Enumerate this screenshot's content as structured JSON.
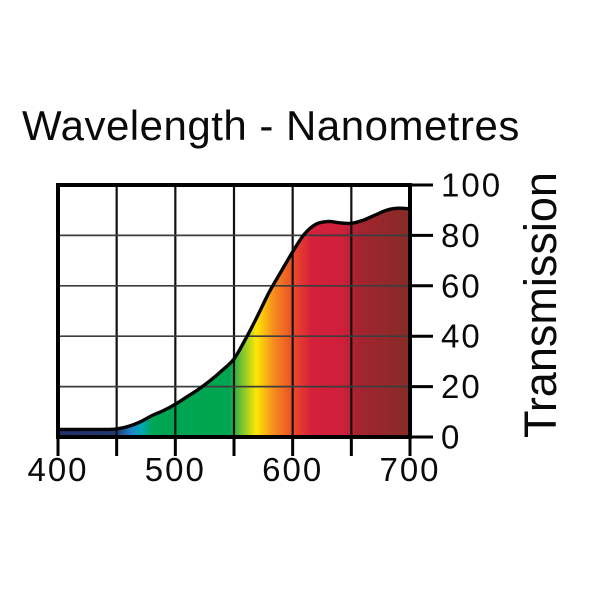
{
  "colors": {
    "background": "#ffffff",
    "text": "#0a0a0a",
    "curve_stroke": "#050505",
    "frame": "#000000",
    "grid_vertical": "#111111",
    "grid_horizontal": "#3d3d3d",
    "tick": "#000000"
  },
  "chart_data": {
    "type": "area",
    "title": "Wavelength - Nanometres",
    "ylabel": "Transmission",
    "xlabel": "",
    "xlim": [
      400,
      700
    ],
    "ylim": [
      0,
      100
    ],
    "grid": true,
    "legend": "none",
    "x": [
      400,
      410,
      420,
      430,
      440,
      450,
      460,
      470,
      480,
      490,
      500,
      510,
      520,
      530,
      540,
      550,
      560,
      570,
      580,
      590,
      600,
      610,
      620,
      630,
      640,
      650,
      660,
      670,
      680,
      690,
      700
    ],
    "values": [
      3,
      3,
      3,
      3,
      3,
      3.2,
      4.2,
      6,
      8.5,
      10.5,
      13,
      16,
      19,
      22.5,
      26.5,
      31,
      39,
      48,
      57.5,
      65.5,
      73.5,
      80.5,
      84.5,
      85.5,
      85,
      84.8,
      86,
      88,
      90,
      90.8,
      90.5
    ],
    "x_ticks": [
      400,
      450,
      500,
      550,
      600,
      650,
      700
    ],
    "x_gridlines": [
      450,
      500,
      550,
      600,
      650
    ],
    "y_gridlines": [
      20,
      40,
      60,
      80
    ],
    "x_tick_labels": [
      {
        "nm": 400,
        "text": "400"
      },
      {
        "nm": 500,
        "text": "500"
      },
      {
        "nm": 600,
        "text": "600"
      },
      {
        "nm": 700,
        "text": "700"
      }
    ],
    "y_tick_labels": [
      {
        "v": 0,
        "text": "0"
      },
      {
        "v": 20,
        "text": "20"
      },
      {
        "v": 40,
        "text": "40"
      },
      {
        "v": 60,
        "text": "60"
      },
      {
        "v": 80,
        "text": "80"
      },
      {
        "v": 100,
        "text": "100"
      }
    ],
    "fill_style": "visible-spectrum horizontal gradient",
    "gradient_stops": [
      {
        "at": 400,
        "color": "#232e6b"
      },
      {
        "at": 450,
        "color": "#20396f"
      },
      {
        "at": 462,
        "color": "#2181c8"
      },
      {
        "at": 471,
        "color": "#00a9b4"
      },
      {
        "at": 481,
        "color": "#00a551"
      },
      {
        "at": 546,
        "color": "#00a551"
      },
      {
        "at": 569,
        "color": "#ffe606"
      },
      {
        "at": 584,
        "color": "#f68b1e"
      },
      {
        "at": 603,
        "color": "#e8432c"
      },
      {
        "at": 616,
        "color": "#d5203a"
      },
      {
        "at": 643,
        "color": "#ce1f3b"
      },
      {
        "at": 657,
        "color": "#a3242f"
      },
      {
        "at": 700,
        "color": "#862b27"
      }
    ]
  }
}
